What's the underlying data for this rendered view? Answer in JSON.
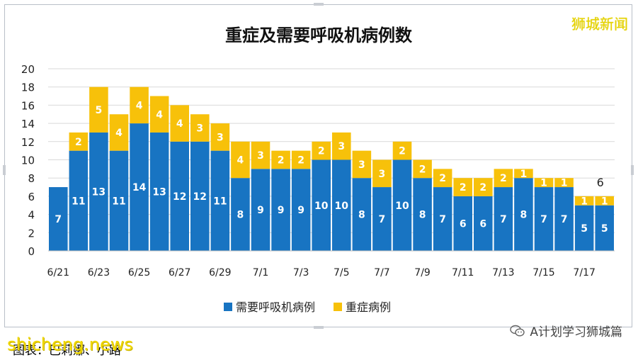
{
  "watermark": "狮城新闻",
  "site_mark": "shicheng.news",
  "footer_note": "图表：巴莉娜、小路",
  "account": {
    "name": "A计划学习狮城篇",
    "icon": "wechat-icon"
  },
  "colors": {
    "ventilator": "#1874c2",
    "icu": "#f7c10a",
    "grid": "#d9d9d9"
  },
  "chart_data": {
    "type": "bar",
    "stacked": true,
    "title": "重症及需要呼吸机病例数",
    "categories": [
      "6/21",
      "6/22",
      "6/23",
      "6/24",
      "6/25",
      "6/26",
      "6/27",
      "6/28",
      "6/29",
      "6/30",
      "7/1",
      "7/2",
      "7/3",
      "7/4",
      "7/5",
      "7/6",
      "7/7",
      "7/8",
      "7/9",
      "7/10",
      "7/11",
      "7/12",
      "7/13",
      "7/14",
      "7/15",
      "7/16",
      "7/17",
      "7/18"
    ],
    "x_tick_labels": [
      "6/21",
      "6/23",
      "6/25",
      "6/27",
      "6/29",
      "7/1",
      "7/3",
      "7/5",
      "7/7",
      "7/9",
      "7/11",
      "7/13",
      "7/15",
      "7/17"
    ],
    "series": [
      {
        "name": "需要呼吸机病例",
        "color": "#1874c2",
        "values": [
          7,
          11,
          13,
          11,
          14,
          13,
          12,
          12,
          11,
          8,
          9,
          9,
          9,
          10,
          10,
          8,
          7,
          10,
          8,
          7,
          6,
          6,
          7,
          8,
          7,
          7,
          5,
          5
        ],
        "labels": [
          "7",
          "11",
          "13",
          "11",
          "14",
          "13",
          "12",
          "12",
          "11",
          "8",
          "9",
          "9",
          "9",
          "10",
          "10",
          "8",
          "7",
          "10",
          "8",
          "7",
          "6",
          "6",
          "7",
          "8",
          "7",
          "7",
          "5",
          "5"
        ]
      },
      {
        "name": "重症病例",
        "color": "#f7c10a",
        "values": [
          0,
          2,
          5,
          4,
          4,
          4,
          4,
          3,
          3,
          4,
          3,
          2,
          2,
          2,
          3,
          3,
          3,
          2,
          2,
          2,
          2,
          2,
          2,
          1,
          1,
          1,
          1,
          1
        ],
        "labels": [
          "",
          "2",
          "5",
          "4",
          "4",
          "4",
          "4",
          "3",
          "3",
          "4",
          "3",
          "2",
          "2",
          "2",
          "3",
          "3",
          "3",
          "2",
          "2",
          "2",
          "2",
          "2",
          "2",
          "1",
          "1",
          "1",
          "1",
          "1"
        ]
      }
    ],
    "ylim": [
      0,
      20
    ],
    "yticks": [
      "0",
      "2",
      "4",
      "6",
      "8",
      "10",
      "12",
      "14",
      "16",
      "18",
      "20"
    ],
    "grid": true,
    "legend_position": "bottom",
    "annotation": "6"
  }
}
